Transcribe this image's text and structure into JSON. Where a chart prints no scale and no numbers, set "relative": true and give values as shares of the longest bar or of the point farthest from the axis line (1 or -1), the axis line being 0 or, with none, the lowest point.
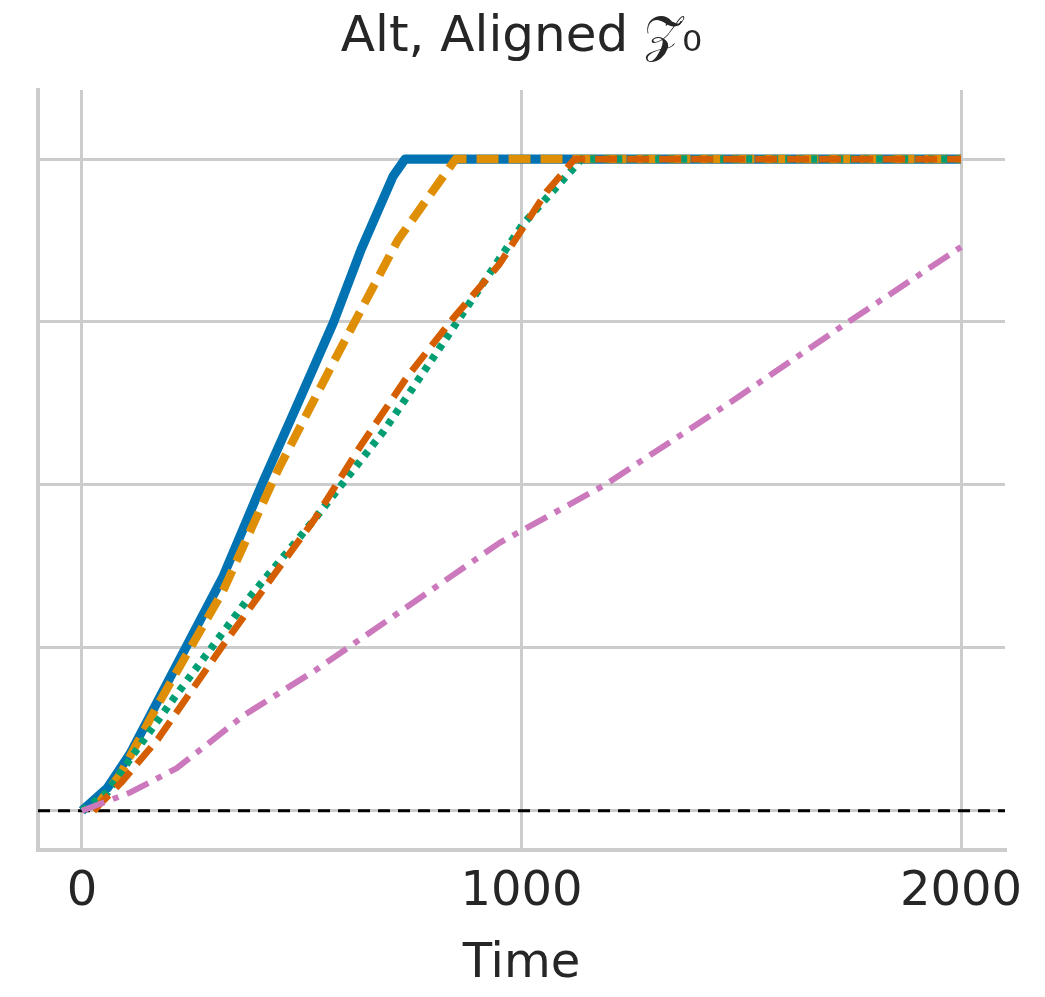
{
  "chart_data": {
    "type": "line",
    "title": "Alt, Aligned 𝒵̃₀",
    "xlabel": "Time",
    "relative": true,
    "xlim": [
      -100,
      2100
    ],
    "xticks": [
      0,
      1000,
      2000
    ],
    "grid": true,
    "legend": false,
    "marker": "none",
    "ref_lines": [
      {
        "axis": "y",
        "value": 0,
        "color": "#000000",
        "line_style": "dashed"
      }
    ],
    "series": [
      {
        "color": "#0173b2",
        "line_style": "solid",
        "x": [
          0,
          58,
          110,
          215,
          320,
          414,
          488,
          572,
          635,
          708,
          735,
          2000
        ],
        "values": [
          0,
          0.035,
          0.088,
          0.223,
          0.358,
          0.508,
          0.62,
          0.749,
          0.861,
          0.974,
          1,
          1
        ]
      },
      {
        "color": "#de8f05",
        "line_style": "dashed",
        "x": [
          26,
          89,
          173,
          320,
          446,
          572,
          719,
          850,
          2000
        ],
        "values": [
          0,
          0.058,
          0.163,
          0.336,
          0.523,
          0.688,
          0.876,
          1,
          1
        ]
      },
      {
        "color": "#029e73",
        "line_style": "dotted",
        "x": [
          0,
          58,
          110,
          215,
          372,
          530,
          687,
          792,
          897,
          1002,
          1137,
          2000
        ],
        "values": [
          0,
          0.028,
          0.08,
          0.178,
          0.32,
          0.448,
          0.583,
          0.688,
          0.794,
          0.899,
          1,
          1
        ]
      },
      {
        "color": "#d55e00",
        "line_style": "dashed",
        "x": [
          26,
          89,
          173,
          320,
          425,
          530,
          635,
          740,
          845,
          950,
          1057,
          1121,
          2000
        ],
        "values": [
          0,
          0.043,
          0.11,
          0.253,
          0.351,
          0.448,
          0.561,
          0.666,
          0.756,
          0.839,
          0.95,
          1,
          1
        ]
      },
      {
        "color": "#cc78bc",
        "line_style": "dashdot",
        "x": [
          0,
          110,
          215,
          372,
          530,
          740,
          950,
          1190,
          1478,
          1741,
          2000
        ],
        "values": [
          0,
          0.028,
          0.065,
          0.148,
          0.215,
          0.313,
          0.411,
          0.5,
          0.628,
          0.749,
          0.865
        ]
      }
    ]
  }
}
